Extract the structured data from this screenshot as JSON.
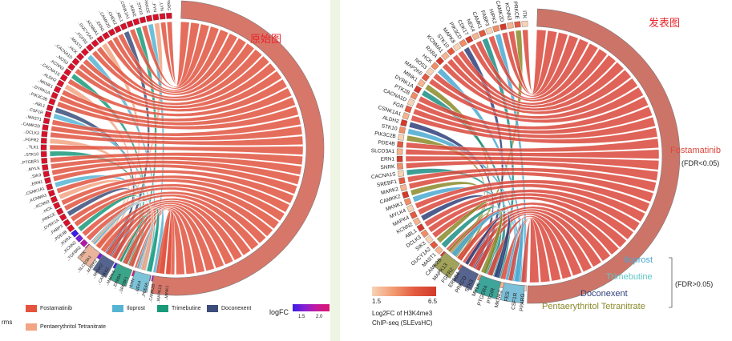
{
  "left_panel": {
    "caption": "原始图",
    "gene_labels": [
      "..PPARG",
      "..LYN",
      "..FYN",
      "..PRKCE",
      "..STK10",
      "..IKBKE",
      "..CSNK1A1",
      "..ABL1",
      "..CHEK2",
      "..CAMK2D",
      "..ERN1",
      "..KCNMA1",
      "..GUCY1A2",
      "..FGFR2",
      "..MAST1",
      "..HCK",
      "..CACNA1D",
      "..NOS3",
      "..KCNN3",
      "..CACNA1S",
      "..ALDH2",
      "..MKNK1",
      "..DYRK1A",
      "..PIK3C2B",
      "..ABL1",
      "..CSF1R",
      "..MAST1",
      "..CAMK2D",
      "..DCLK3",
      "..FGFR2",
      "..TLK1",
      "..STK10",
      "..PTGER1",
      "..MYLK",
      "..SIK3",
      "..ERN1",
      "..CSNK1A1",
      "..KCNMA1",
      "..KCNN3",
      "..HCK",
      "..PRKCE",
      "..DYRK1A",
      "..FABP3",
      "..PDE4B",
      "..RXRA",
      "..KCNN2",
      "..TGFBR2",
      "..ITK",
      "..SLCO3A1",
      "..MARK2",
      "..MKNK2",
      "..CAMKK2",
      "..MAPK4",
      "..ERBB4",
      "..SREBF1",
      "..LYN",
      "..NEK4",
      "..PDE4A",
      "..CAMK2B",
      "..MAPK13",
      "..MINK1"
    ],
    "terms_partial": "rms",
    "legend": [
      {
        "label": "Fostamatinib",
        "color": "#e5533d"
      },
      {
        "label": "Iloprost",
        "color": "#56b4d3"
      },
      {
        "label": "Trimebutine",
        "color": "#1a9a7a"
      },
      {
        "label": "Doconexent",
        "color": "#3b4d7a"
      },
      {
        "label": "Pentaerythritol Tetranitrate",
        "color": "#f1a582"
      }
    ],
    "colorbar": {
      "title": "logFC",
      "ticks": [
        "1.5",
        "2.0"
      ]
    }
  },
  "right_panel": {
    "caption": "发表图",
    "gene_labels": [
      "ITK",
      "PRKCE",
      "KCNN3",
      "CAMK2D",
      "HIPK2",
      "FABP3",
      "CAMK1",
      "NEK4",
      "CDK17",
      "PIK3CD",
      "MAPK8",
      "STK10",
      "KCNMA1",
      "RXRA",
      "HCK",
      "NOS3",
      "MAP2K6",
      "MINK1",
      "DYRK1A",
      "PTK2B",
      "CACNA1D",
      "FGR",
      "CSNK1A1",
      "ALDH2",
      "STK10",
      "PIK3C2B",
      "PDE4B",
      "SLCO3A1",
      "ERN1",
      "SNRK",
      "CACNA1S",
      "SREBF1",
      "MARK2",
      "CAMKK2",
      "MKNK1",
      "MYLK4",
      "MAPK4",
      "KCNN2",
      "ABL1",
      "DCLK3",
      "SIK3",
      "GUCY1A2",
      "MAST1",
      "CAMK2B",
      "MAPK13",
      "FGFR2",
      "ERBB4",
      "PRKCD",
      "STK3",
      "MYLK",
      "PTGER4",
      "PTGIR",
      "MKNK2",
      "FES",
      "CSF1R",
      "PPARG"
    ],
    "drug_labels": [
      {
        "label": "Fostamatinib",
        "color": "#d9483b",
        "note": "(FDR<0.05)"
      },
      {
        "label": "Iloprost",
        "color": "#4aa8d0"
      },
      {
        "label": "Trimebutine",
        "color": "#5ec7c3"
      },
      {
        "label": "Doconexent",
        "color": "#2f3f7a"
      },
      {
        "label": "Pentaerythritol Tetranitrate",
        "color": "#8a8a2a"
      }
    ],
    "group_note": "(FDR>0.05)",
    "colorbar": {
      "min": "1.5",
      "max": "6.5",
      "title_line1": "Log2FC of H3K4me3",
      "title_line2": "ChIP-seq (SLEvsHC)"
    }
  }
}
